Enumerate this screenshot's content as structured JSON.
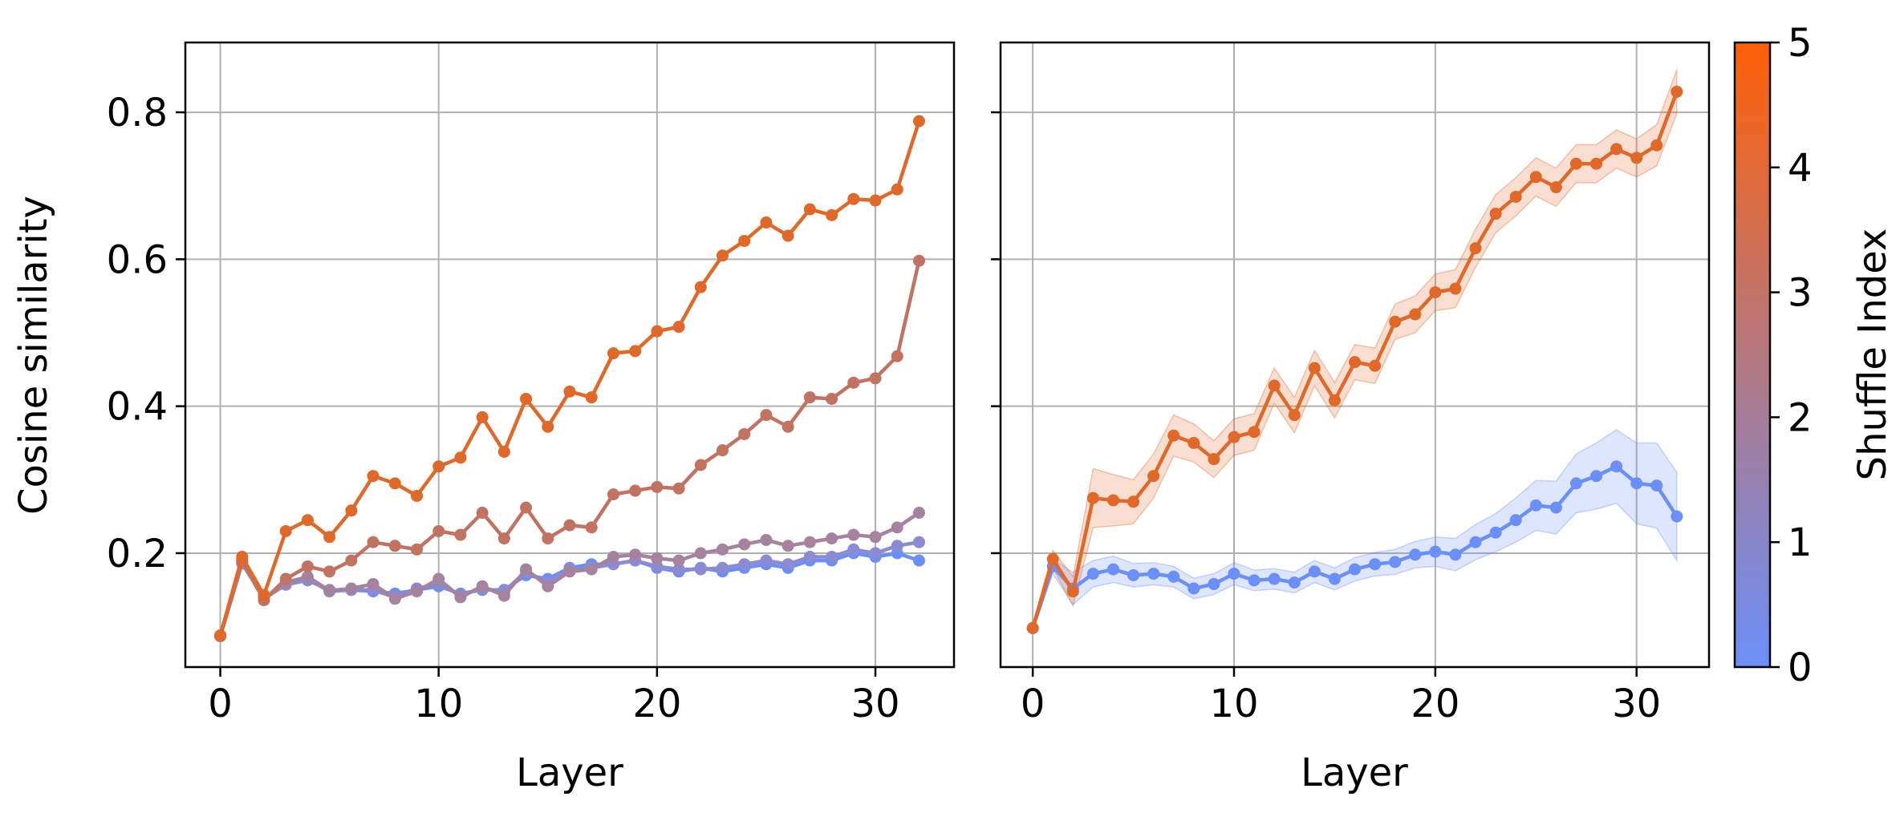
{
  "figure": {
    "colorbar": {
      "label": "Shuffle Index",
      "min": 0,
      "max": 5,
      "ticks": [
        "0",
        "1",
        "2",
        "3",
        "4",
        "5"
      ],
      "color_low": "#6a8ff9",
      "color_high": "#ff6006"
    }
  },
  "chart_data": [
    {
      "type": "line",
      "panel": "left",
      "xlabel": "Layer",
      "ylabel": "Cosine similarity",
      "xlim": [
        -1.6,
        33.6
      ],
      "ylim": [
        0.045,
        0.895
      ],
      "xticks": [
        "0",
        "10",
        "20",
        "30"
      ],
      "yticks": [
        "0.2",
        "0.4",
        "0.6",
        "0.8"
      ],
      "grid": true,
      "markers": true,
      "x": [
        0,
        1,
        2,
        3,
        4,
        5,
        6,
        7,
        8,
        9,
        10,
        11,
        12,
        13,
        14,
        15,
        16,
        17,
        18,
        19,
        20,
        21,
        22,
        23,
        24,
        25,
        26,
        27,
        28,
        29,
        30,
        31,
        32
      ],
      "series": [
        {
          "shuffle_index": 0,
          "color": "#6a8ff9",
          "values": [
            0.087,
            0.186,
            0.139,
            0.158,
            0.165,
            0.148,
            0.15,
            0.148,
            0.145,
            0.15,
            0.155,
            0.145,
            0.15,
            0.15,
            0.17,
            0.165,
            0.18,
            0.185,
            0.185,
            0.19,
            0.18,
            0.175,
            0.18,
            0.175,
            0.18,
            0.185,
            0.18,
            0.19,
            0.19,
            0.2,
            0.195,
            0.2,
            0.19
          ]
        },
        {
          "shuffle_index": 1,
          "color": "#8a8bd2",
          "values": [
            0.087,
            0.187,
            0.138,
            0.157,
            0.163,
            0.15,
            0.15,
            0.15,
            0.14,
            0.152,
            0.158,
            0.143,
            0.152,
            0.148,
            0.175,
            0.16,
            0.178,
            0.18,
            0.185,
            0.19,
            0.182,
            0.178,
            0.178,
            0.18,
            0.185,
            0.19,
            0.185,
            0.195,
            0.195,
            0.205,
            0.2,
            0.21,
            0.215
          ]
        },
        {
          "shuffle_index": 2,
          "color": "#a5839f",
          "values": [
            0.087,
            0.188,
            0.137,
            0.16,
            0.168,
            0.149,
            0.152,
            0.158,
            0.138,
            0.148,
            0.165,
            0.14,
            0.155,
            0.142,
            0.178,
            0.155,
            0.175,
            0.178,
            0.195,
            0.198,
            0.193,
            0.19,
            0.2,
            0.205,
            0.212,
            0.218,
            0.21,
            0.215,
            0.22,
            0.225,
            0.222,
            0.235,
            0.255
          ]
        },
        {
          "shuffle_index": 3,
          "color": "#c27260",
          "values": [
            0.088,
            0.19,
            0.136,
            0.165,
            0.182,
            0.175,
            0.19,
            0.215,
            0.21,
            0.205,
            0.23,
            0.225,
            0.255,
            0.22,
            0.262,
            0.22,
            0.238,
            0.235,
            0.28,
            0.285,
            0.29,
            0.288,
            0.32,
            0.34,
            0.362,
            0.388,
            0.372,
            0.412,
            0.41,
            0.432,
            0.438,
            0.468,
            0.598
          ]
        },
        {
          "shuffle_index": 5,
          "color": "#e06828",
          "values": [
            0.088,
            0.195,
            0.143,
            0.23,
            0.245,
            0.222,
            0.258,
            0.305,
            0.295,
            0.278,
            0.318,
            0.33,
            0.385,
            0.338,
            0.41,
            0.372,
            0.42,
            0.412,
            0.472,
            0.475,
            0.502,
            0.508,
            0.562,
            0.605,
            0.625,
            0.65,
            0.632,
            0.668,
            0.66,
            0.682,
            0.68,
            0.695,
            0.788
          ]
        }
      ]
    },
    {
      "type": "line",
      "panel": "right",
      "xlabel": "Layer",
      "ylim": [
        0.045,
        0.895
      ],
      "xlim": [
        -1.6,
        33.6
      ],
      "xticks": [
        "0",
        "10",
        "20",
        "30"
      ],
      "grid": true,
      "markers": true,
      "shaded_band": true,
      "x": [
        0,
        1,
        2,
        3,
        4,
        5,
        6,
        7,
        8,
        9,
        10,
        11,
        12,
        13,
        14,
        15,
        16,
        17,
        18,
        19,
        20,
        21,
        22,
        23,
        24,
        25,
        26,
        27,
        28,
        29,
        30,
        31,
        32
      ],
      "series": [
        {
          "shuffle_index": 0,
          "color": "#6a8ff9",
          "values": [
            0.098,
            0.182,
            0.152,
            0.172,
            0.178,
            0.17,
            0.172,
            0.168,
            0.152,
            0.158,
            0.172,
            0.163,
            0.165,
            0.16,
            0.175,
            0.165,
            0.178,
            0.185,
            0.188,
            0.198,
            0.202,
            0.198,
            0.215,
            0.228,
            0.245,
            0.265,
            0.262,
            0.295,
            0.305,
            0.318,
            0.295,
            0.292,
            0.25
          ],
          "band_halfwidth": [
            0.004,
            0.01,
            0.022,
            0.018,
            0.018,
            0.016,
            0.015,
            0.014,
            0.014,
            0.014,
            0.015,
            0.014,
            0.014,
            0.014,
            0.015,
            0.015,
            0.016,
            0.016,
            0.017,
            0.018,
            0.02,
            0.022,
            0.024,
            0.026,
            0.03,
            0.034,
            0.036,
            0.04,
            0.045,
            0.05,
            0.055,
            0.058,
            0.06
          ]
        },
        {
          "shuffle_index": 5,
          "color": "#e06828",
          "values": [
            0.098,
            0.192,
            0.148,
            0.275,
            0.272,
            0.27,
            0.305,
            0.36,
            0.35,
            0.328,
            0.358,
            0.365,
            0.428,
            0.388,
            0.452,
            0.408,
            0.46,
            0.455,
            0.515,
            0.525,
            0.555,
            0.56,
            0.615,
            0.662,
            0.685,
            0.712,
            0.698,
            0.73,
            0.73,
            0.75,
            0.738,
            0.755,
            0.828
          ],
          "band_halfwidth": [
            0.004,
            0.012,
            0.02,
            0.04,
            0.035,
            0.03,
            0.03,
            0.028,
            0.026,
            0.025,
            0.025,
            0.025,
            0.024,
            0.024,
            0.024,
            0.024,
            0.024,
            0.024,
            0.024,
            0.025,
            0.025,
            0.026,
            0.026,
            0.026,
            0.026,
            0.026,
            0.026,
            0.026,
            0.026,
            0.026,
            0.026,
            0.028,
            0.03
          ]
        }
      ]
    }
  ]
}
